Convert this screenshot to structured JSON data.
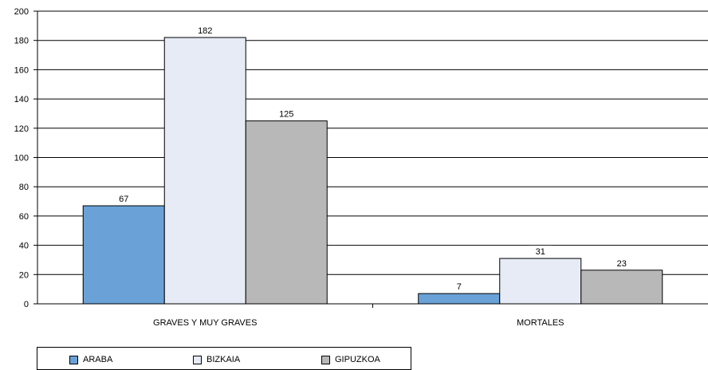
{
  "chart_data": {
    "type": "bar",
    "categories": [
      "GRAVES Y MUY GRAVES",
      "MORTALES"
    ],
    "series": [
      {
        "name": "ARABA",
        "values": [
          67,
          7
        ],
        "color": "#6aa2d8"
      },
      {
        "name": "BIZKAIA",
        "values": [
          182,
          31
        ],
        "color": "#e6ebf5"
      },
      {
        "name": "GIPUZKOA",
        "values": [
          125,
          23
        ],
        "color": "#b8b8b8"
      }
    ],
    "ylim": [
      0,
      200
    ],
    "yticks": [
      "0",
      "20",
      "40",
      "60",
      "80",
      "100",
      "120",
      "140",
      "160",
      "180",
      "200"
    ],
    "grid": true,
    "legend_position": "bottom-left",
    "title": "",
    "xlabel": "",
    "ylabel": ""
  }
}
